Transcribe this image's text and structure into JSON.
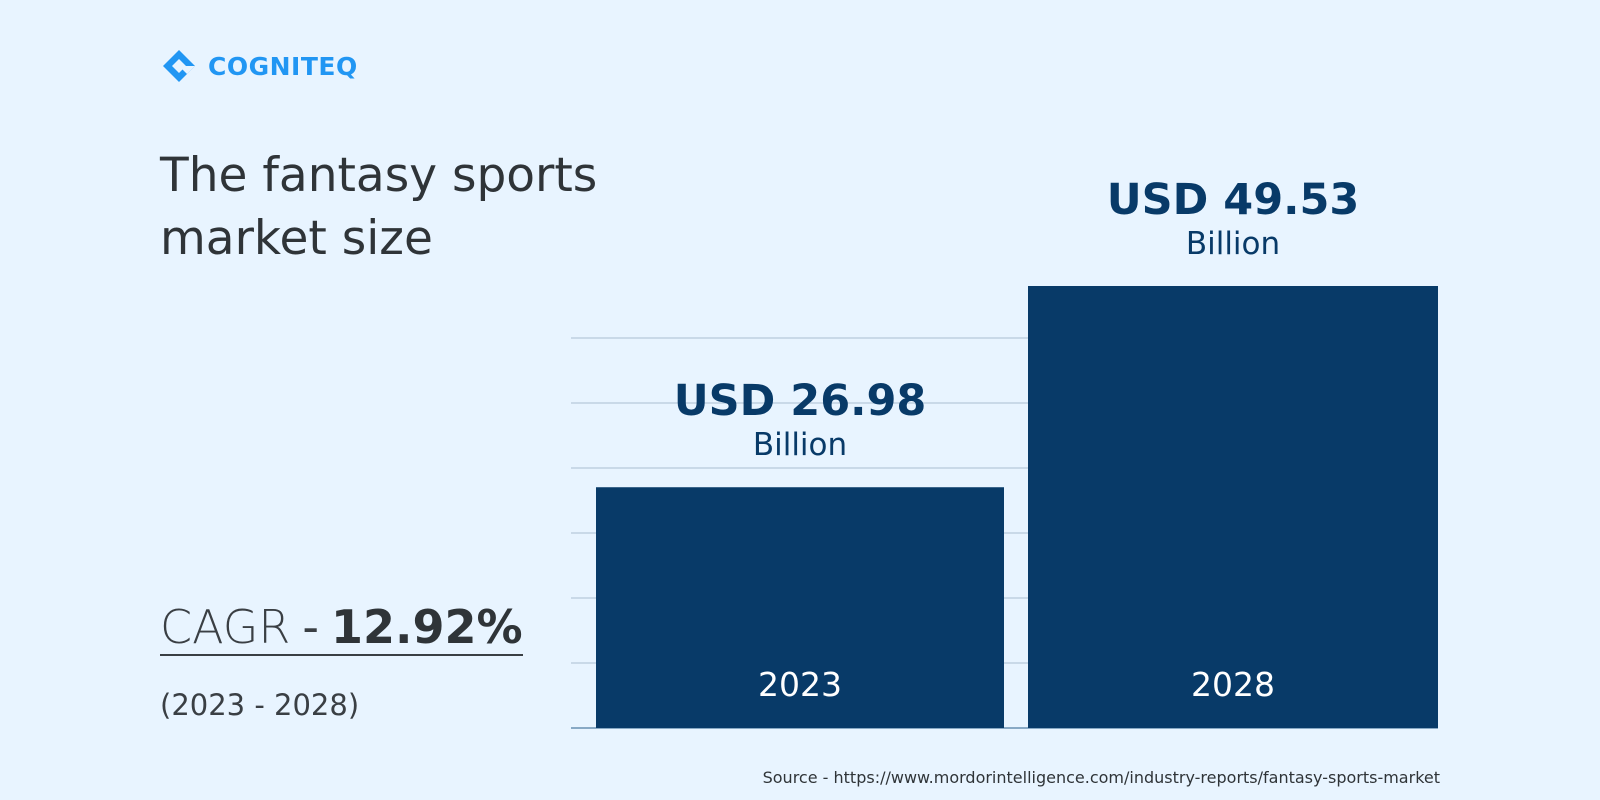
{
  "brand": {
    "name": "COGNITEQ",
    "color": "#2196f3"
  },
  "title": "The fantasy sports market size",
  "cagr": {
    "label": "CAGR",
    "separator": "-",
    "value": "12.92%",
    "period": "(2023 - 2028)"
  },
  "chart_data": {
    "type": "bar",
    "categories": [
      "2023",
      "2028"
    ],
    "values": [
      26.98,
      49.53
    ],
    "value_labels": [
      "USD 26.98",
      "USD 49.53"
    ],
    "unit_label": "Billion",
    "title": "The fantasy sports market size",
    "xlabel": "",
    "ylabel": "",
    "ylim": [
      0,
      49.53
    ],
    "grid": true,
    "bar_color": "#083a68",
    "label_color": "#083a68",
    "category_label_color": "#ffffff"
  },
  "source": "Source - https://www.mordorintelligence.com/industry-reports/fantasy-sports-market",
  "colors": {
    "background": "#e8f4ff",
    "text": "#2f3438",
    "grid": "#c9d9e8"
  }
}
